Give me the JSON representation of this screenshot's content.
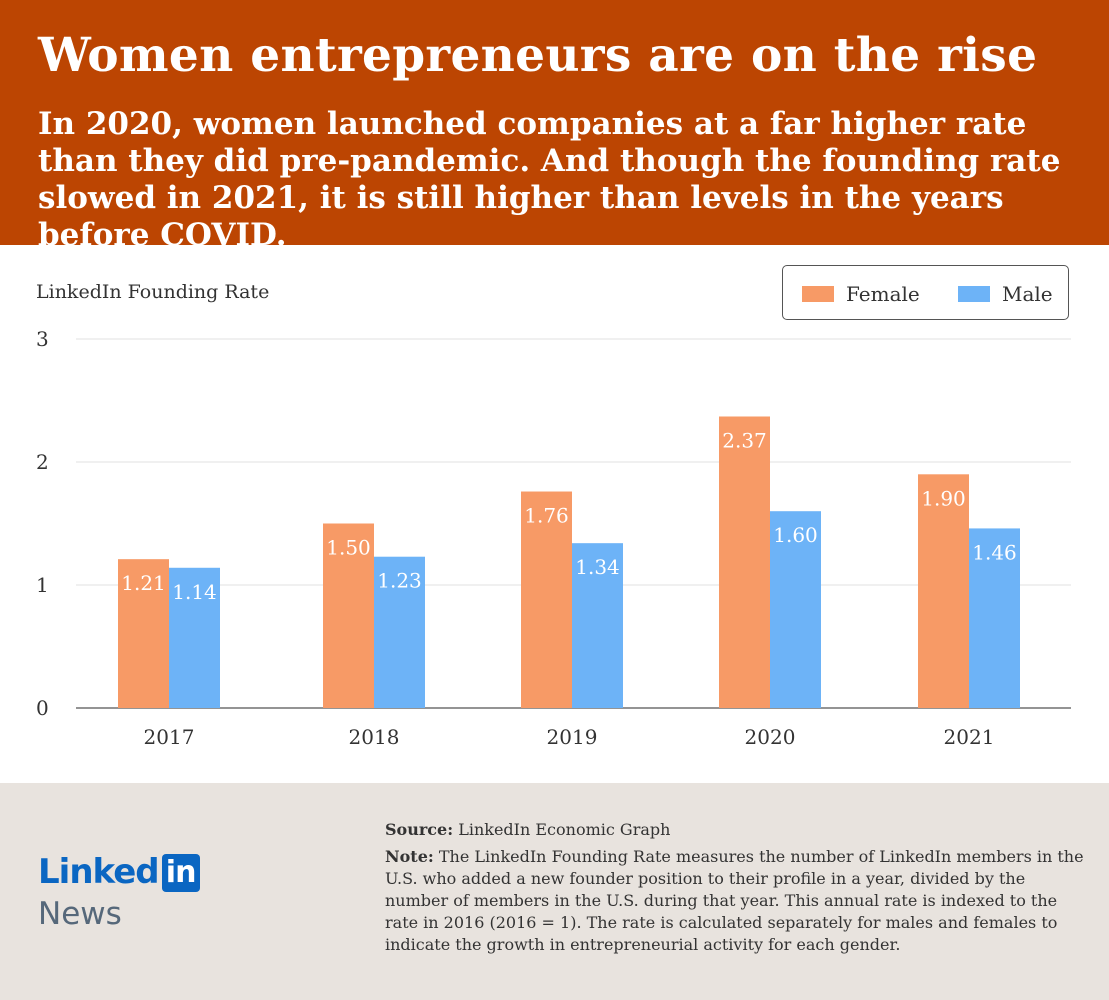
{
  "header": {
    "title": "Women entrepreneurs are on the rise",
    "subtitle": "In 2020, women launched companies at a far higher rate than they did pre-pandemic. And though the founding rate slowed in 2021, it is still higher than levels in the years before COVID."
  },
  "chart_data": {
    "type": "bar",
    "ylabel": "LinkedIn Founding Rate",
    "xlabel": "",
    "ylim": [
      0,
      3
    ],
    "yticks": [
      "0",
      "1",
      "2",
      "3"
    ],
    "grid": true,
    "legend_position": "top-right",
    "categories": [
      "2017",
      "2018",
      "2019",
      "2020",
      "2021"
    ],
    "series": [
      {
        "name": "Female",
        "color": "#f79a66",
        "values": [
          1.21,
          1.5,
          1.76,
          2.37,
          1.9
        ],
        "labels": [
          "1.21",
          "1.50",
          "1.76",
          "2.37",
          "1.90"
        ]
      },
      {
        "name": "Male",
        "color": "#6db3f7",
        "values": [
          1.14,
          1.23,
          1.34,
          1.6,
          1.46
        ],
        "labels": [
          "1.14",
          "1.23",
          "1.34",
          "1.60",
          "1.46"
        ]
      }
    ]
  },
  "footer": {
    "logo_text": "Linked",
    "logo_in": "in",
    "logo_news": "News",
    "source_label": "Source:",
    "source_text": " LinkedIn Economic Graph",
    "note_label": "Note:",
    "note_text": " The LinkedIn Founding Rate measures the number of LinkedIn members in the U.S. who added a new founder position to their profile in a year, divided by the number of members in the U.S. during that year. This annual rate is indexed to the rate in 2016 (2016 = 1). The rate is calculated separately for males and females to indicate the growth in entrepreneurial activity for each gender."
  },
  "colors": {
    "header_bg": "#bc4502",
    "footer_bg": "#e8e3de",
    "linkedin_blue": "#0a66c2"
  }
}
